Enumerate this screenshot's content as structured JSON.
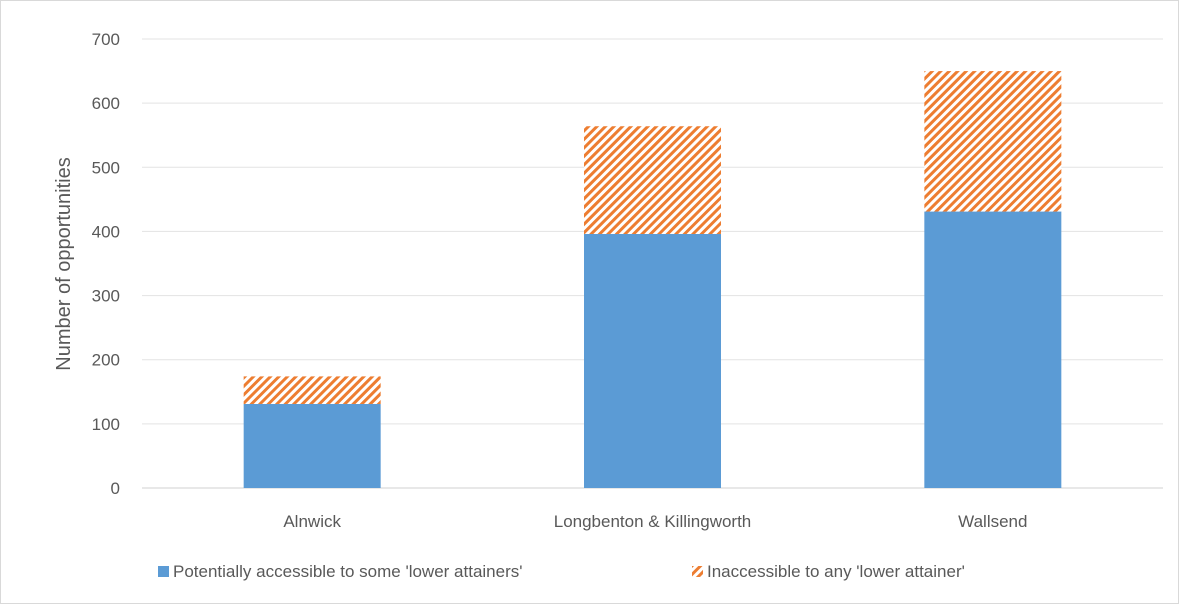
{
  "chart_data": {
    "type": "bar",
    "stacked": true,
    "title": "",
    "xlabel": "",
    "ylabel": "Number of opportunities",
    "ylim": [
      0,
      700
    ],
    "yticks": [
      0,
      100,
      200,
      300,
      400,
      500,
      600,
      700
    ],
    "categories": [
      "Alnwick",
      "Longbenton & Killingworth",
      "Wallsend"
    ],
    "series": [
      {
        "name": "Potentially accessible to some 'lower attainers'",
        "values": [
          131,
          396,
          431
        ],
        "color": "#5b9bd5",
        "pattern": "solid"
      },
      {
        "name": "Inaccessible to any  'lower attainer'",
        "values": [
          43,
          168,
          219
        ],
        "color": "#ed7d31",
        "pattern": "diagonal-hatch"
      }
    ],
    "grid": true,
    "legend": "bottom"
  }
}
